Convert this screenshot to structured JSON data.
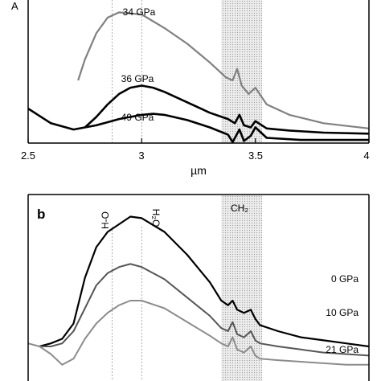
{
  "chart_data": [
    {
      "panel": "a",
      "type": "line",
      "xlabel": "µm",
      "ylabel_partial": "A",
      "xlim": [
        2.5,
        4.0
      ],
      "xticks": [
        "2.5",
        "3",
        "3.5",
        "4"
      ],
      "series": [
        {
          "name": "34 GPa",
          "color": "#808080",
          "x": [
            2.72,
            2.75,
            2.8,
            2.85,
            2.9,
            3.0,
            3.1,
            3.2,
            3.3,
            3.37,
            3.4,
            3.42,
            3.44,
            3.47,
            3.5,
            3.55,
            3.65,
            3.8,
            4.0
          ],
          "y": [
            0.55,
            0.75,
            1.0,
            1.15,
            1.2,
            1.18,
            1.05,
            0.9,
            0.72,
            0.58,
            0.55,
            0.66,
            0.5,
            0.42,
            0.48,
            0.32,
            0.22,
            0.14,
            0.09
          ]
        },
        {
          "name": "36 GPa",
          "color": "#000000",
          "x": [
            2.75,
            2.8,
            2.85,
            2.9,
            2.95,
            3.0,
            3.05,
            3.1,
            3.2,
            3.3,
            3.38,
            3.41,
            3.43,
            3.45,
            3.48,
            3.5,
            3.55,
            3.65,
            3.8,
            4.0
          ],
          "y": [
            0.1,
            0.2,
            0.32,
            0.42,
            0.48,
            0.5,
            0.48,
            0.44,
            0.34,
            0.24,
            0.18,
            0.14,
            0.22,
            0.12,
            0.1,
            0.16,
            0.09,
            0.07,
            0.05,
            0.04
          ]
        },
        {
          "name": "49 GPa",
          "color": "#000000",
          "x": [
            2.5,
            2.6,
            2.7,
            2.8,
            2.9,
            3.0,
            3.05,
            3.1,
            3.2,
            3.3,
            3.38,
            3.4,
            3.43,
            3.45,
            3.48,
            3.5,
            3.55,
            3.7,
            4.0
          ],
          "y": [
            0.28,
            0.14,
            0.08,
            0.12,
            0.18,
            0.22,
            0.23,
            0.22,
            0.17,
            0.1,
            0.03,
            -0.04,
            0.08,
            -0.03,
            0.02,
            0.1,
            0.0,
            -0.02,
            -0.02
          ]
        }
      ],
      "band": {
        "label": "",
        "x": [
          3.35,
          3.53
        ]
      },
      "vlines": [
        2.87,
        3.0
      ]
    },
    {
      "panel": "b",
      "type": "line",
      "xlim": [
        2.5,
        4.0
      ],
      "annotations": [
        "H-O",
        "H₂O",
        "CH₂"
      ],
      "band": {
        "label": "CH₂",
        "x": [
          3.35,
          3.53
        ]
      },
      "vlines": [
        2.87,
        3.0
      ],
      "series": [
        {
          "name": "0 GPa",
          "color": "#000000",
          "x": [
            2.55,
            2.6,
            2.65,
            2.7,
            2.75,
            2.8,
            2.85,
            2.9,
            2.95,
            3.0,
            3.1,
            3.2,
            3.3,
            3.35,
            3.38,
            3.4,
            3.42,
            3.45,
            3.48,
            3.5,
            3.52,
            3.6,
            3.7,
            3.8,
            3.9,
            4.0
          ],
          "y": [
            0.2,
            0.22,
            0.25,
            0.35,
            0.65,
            0.85,
            0.95,
            1.0,
            1.05,
            1.04,
            0.95,
            0.8,
            0.62,
            0.5,
            0.47,
            0.5,
            0.44,
            0.42,
            0.44,
            0.38,
            0.34,
            0.3,
            0.26,
            0.24,
            0.22,
            0.2
          ]
        },
        {
          "name": "10 GPa",
          "color": "#555555",
          "x": [
            2.55,
            2.6,
            2.65,
            2.7,
            2.75,
            2.8,
            2.85,
            2.9,
            2.95,
            3.0,
            3.1,
            3.2,
            3.3,
            3.35,
            3.38,
            3.4,
            3.42,
            3.45,
            3.48,
            3.5,
            3.52,
            3.6,
            3.7,
            3.8,
            3.9,
            4.0
          ],
          "y": [
            0.2,
            0.2,
            0.22,
            0.3,
            0.45,
            0.6,
            0.68,
            0.72,
            0.74,
            0.72,
            0.64,
            0.52,
            0.4,
            0.32,
            0.3,
            0.36,
            0.28,
            0.26,
            0.3,
            0.24,
            0.22,
            0.2,
            0.18,
            0.16,
            0.15,
            0.14
          ]
        },
        {
          "name": "21 GPa",
          "color": "#8c8c8c",
          "x": [
            2.5,
            2.55,
            2.6,
            2.65,
            2.7,
            2.75,
            2.8,
            2.85,
            2.9,
            2.95,
            3.0,
            3.1,
            3.2,
            3.3,
            3.35,
            3.38,
            3.4,
            3.42,
            3.45,
            3.48,
            3.5,
            3.52,
            3.6,
            3.7,
            3.8,
            3.9,
            4.0
          ],
          "y": [
            0.22,
            0.2,
            0.15,
            0.08,
            0.12,
            0.25,
            0.35,
            0.42,
            0.47,
            0.5,
            0.5,
            0.45,
            0.36,
            0.27,
            0.22,
            0.2,
            0.26,
            0.18,
            0.16,
            0.2,
            0.14,
            0.12,
            0.11,
            0.1,
            0.09,
            0.08,
            0.08
          ]
        }
      ]
    }
  ]
}
